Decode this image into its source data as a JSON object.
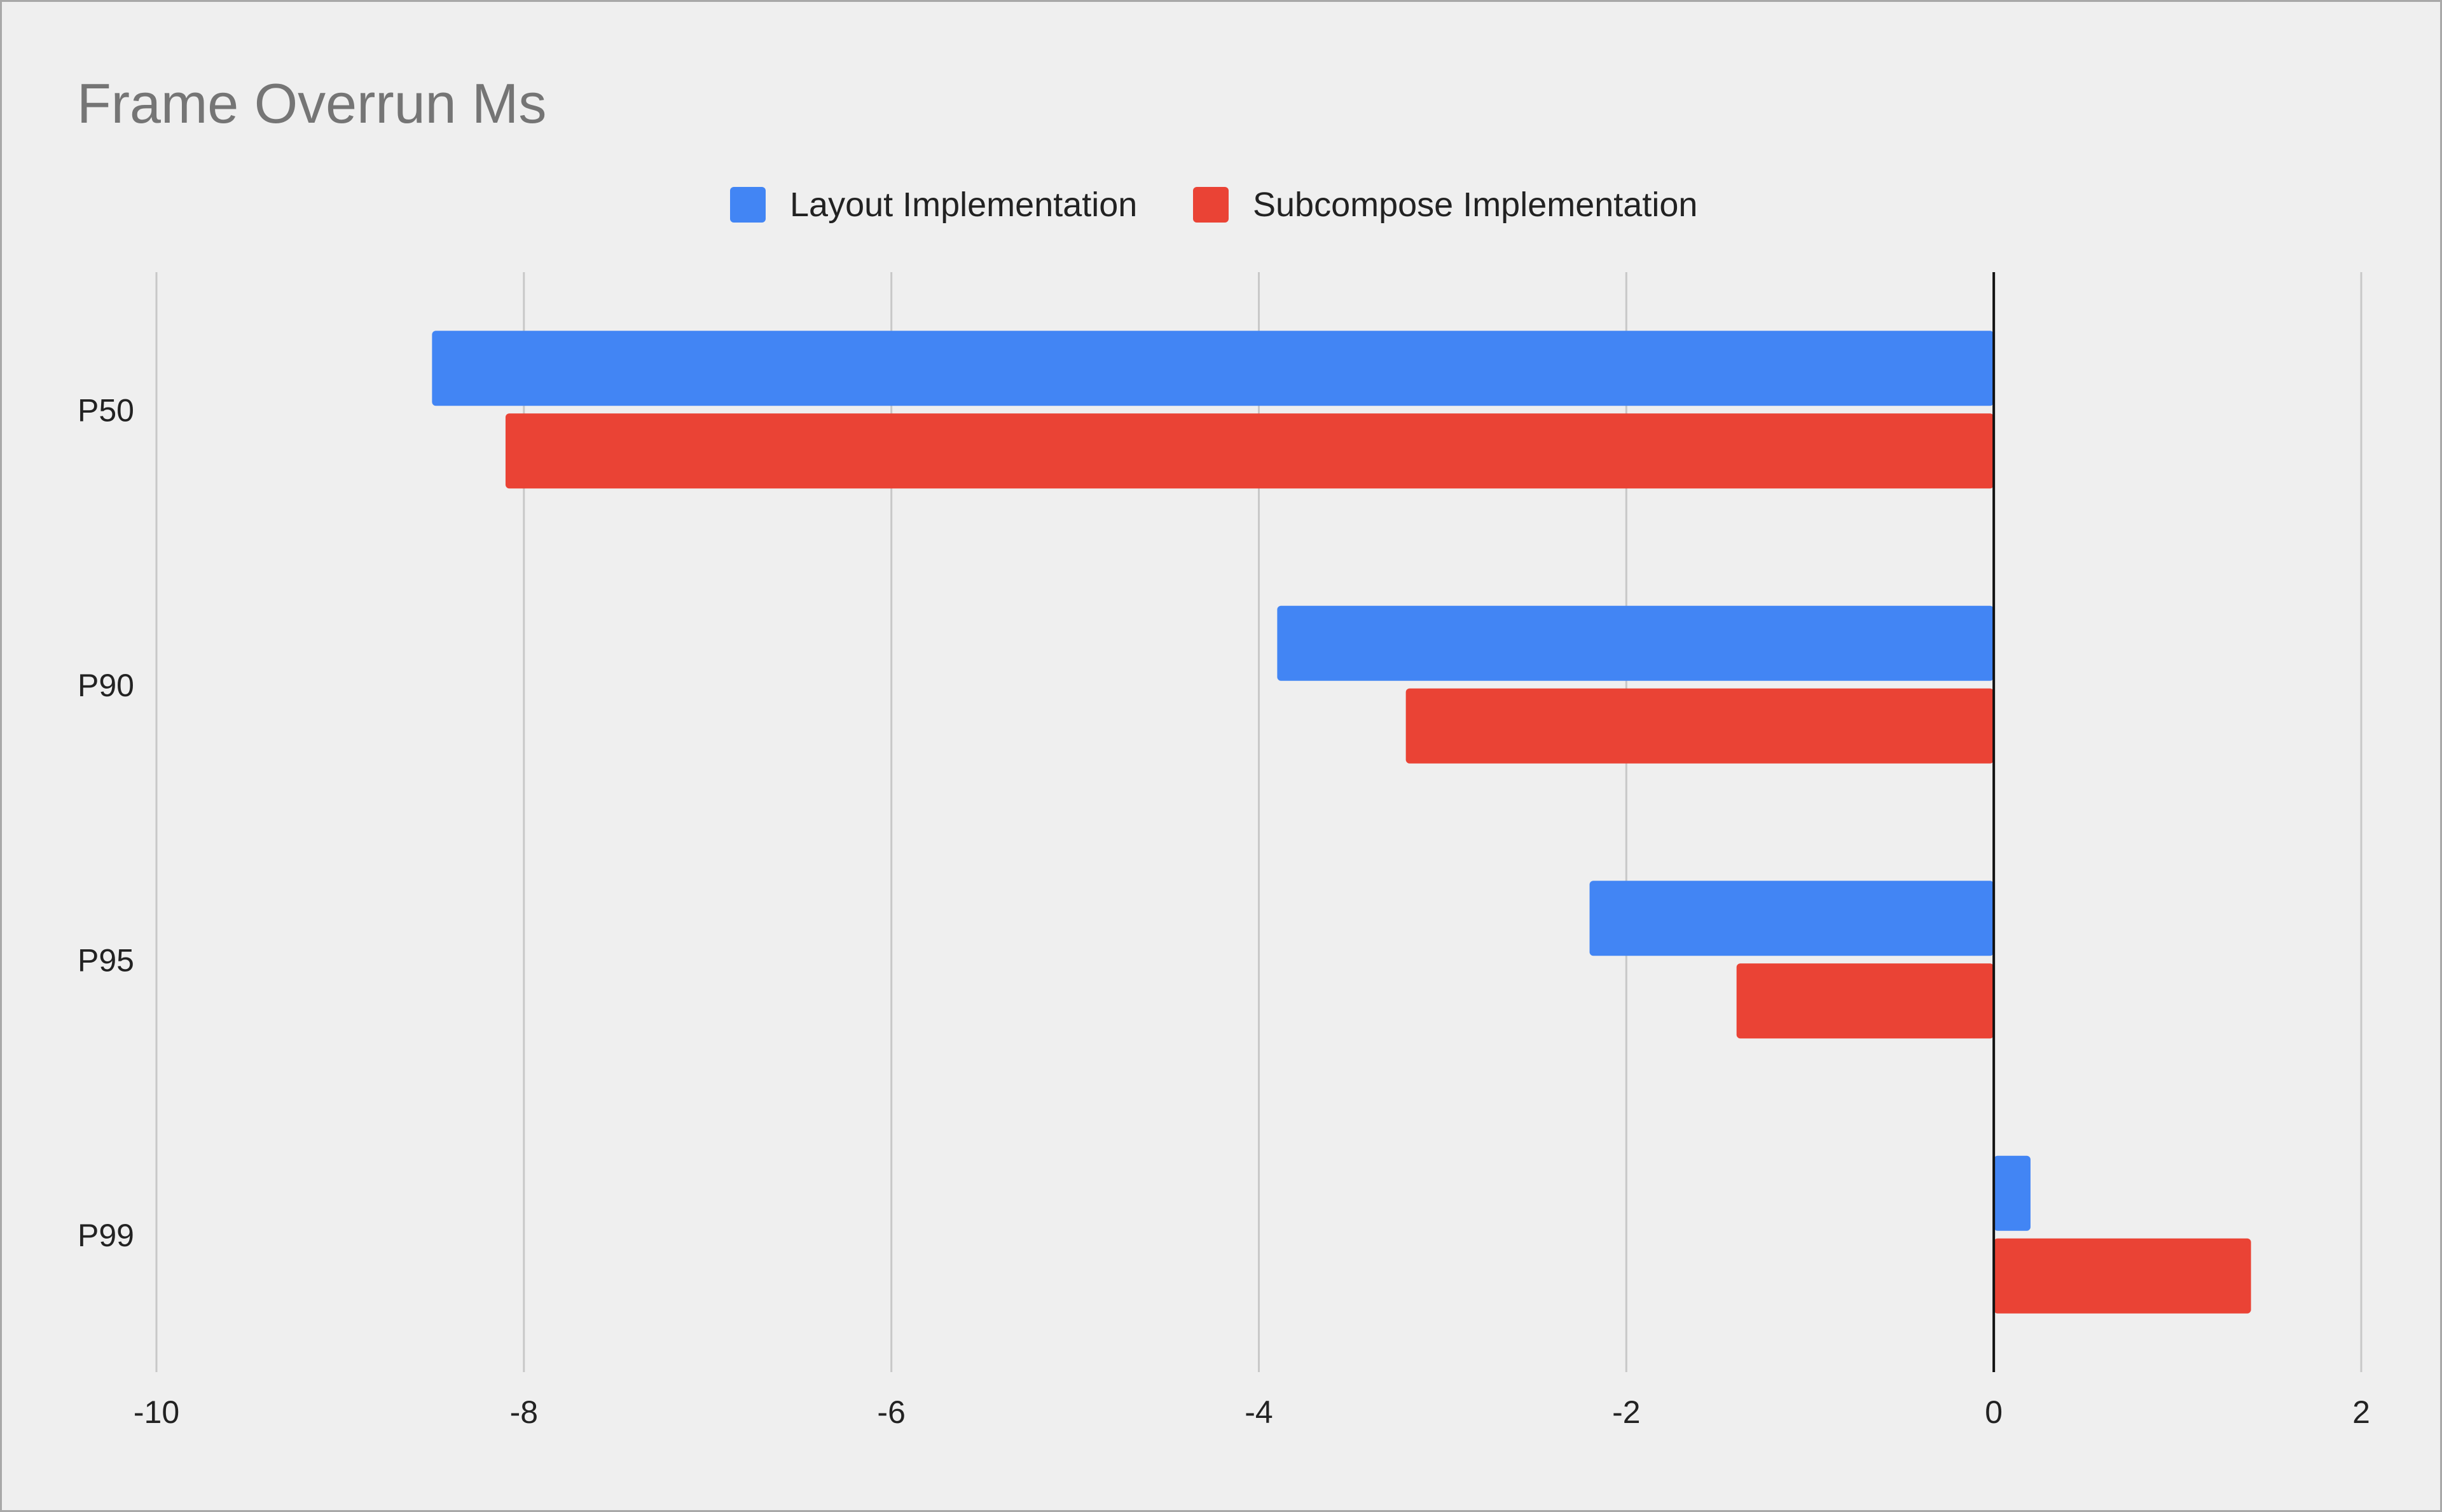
{
  "title": "Frame Overrun Ms",
  "legend": {
    "layout": "Layout Implementation",
    "subcompose": "Subcompose Implementation"
  },
  "colors": {
    "layout": "#4285f4",
    "subcompose": "#ea4335",
    "grid": "#c8c8c8",
    "axis": "#111111",
    "background": "#efefef"
  },
  "chart_data": {
    "type": "bar",
    "orientation": "horizontal",
    "title": "Frame Overrun Ms",
    "categories": [
      "P50",
      "P90",
      "P95",
      "P99"
    ],
    "series": [
      {
        "name": "Layout Implementation",
        "values": [
          -8.5,
          -3.9,
          -2.2,
          0.2
        ]
      },
      {
        "name": "Subcompose Implementation",
        "values": [
          -8.1,
          -3.2,
          -1.4,
          1.4
        ]
      }
    ],
    "xlim": [
      -10,
      2
    ],
    "xticks": [
      -10,
      -8,
      -6,
      -4,
      -2,
      0,
      2
    ],
    "xlabel": "",
    "ylabel": "",
    "grid": true,
    "legend_position": "top-center"
  }
}
